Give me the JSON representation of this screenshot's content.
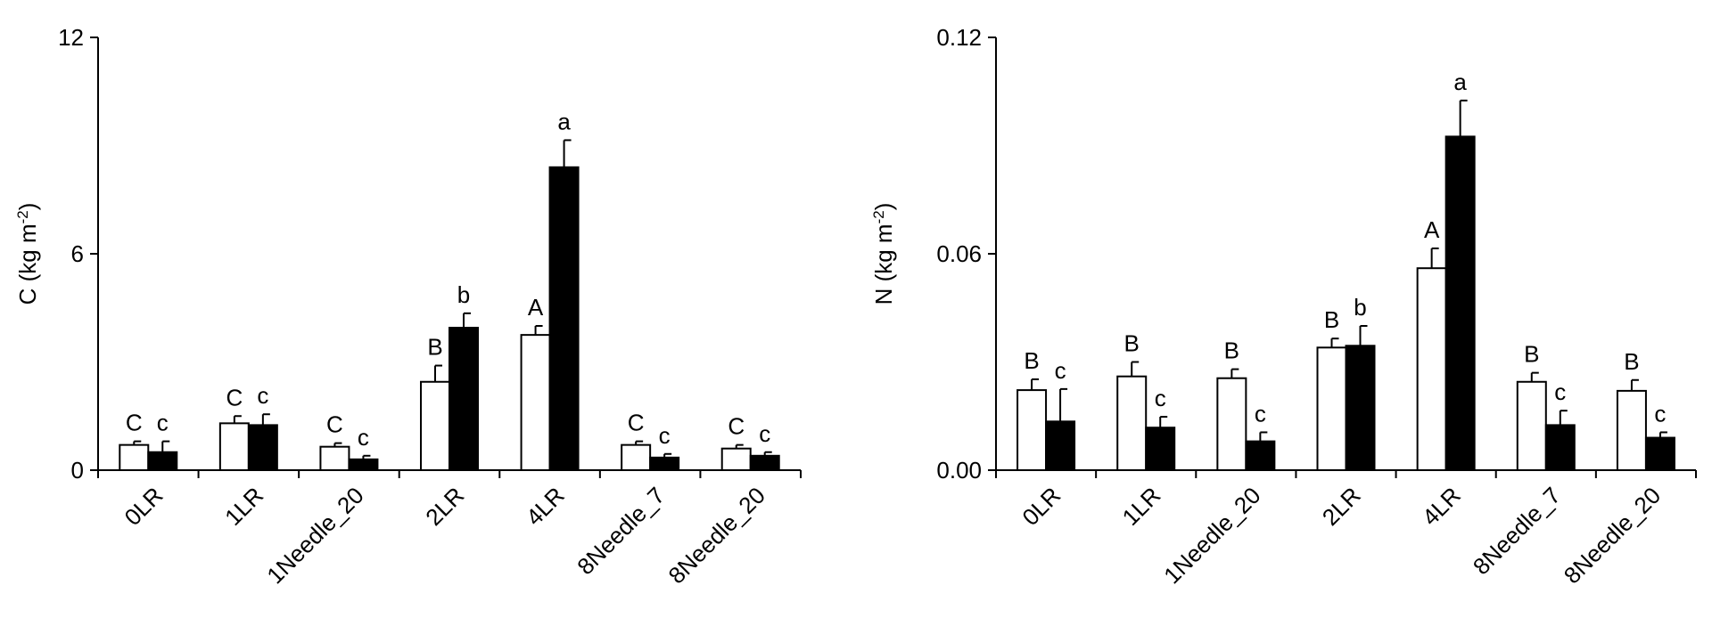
{
  "colors": {
    "series_open": "#ffffff",
    "series_filled": "#000000",
    "axis": "#000000"
  },
  "chart_data": [
    {
      "type": "bar",
      "ylabel_main": "C (kg m",
      "ylabel_sup": "-2",
      "ylabel_close": ")",
      "ylim": [
        0,
        12
      ],
      "yticks": [
        "0",
        "6",
        "12"
      ],
      "ytick_values": [
        0,
        6,
        12
      ],
      "categories": [
        "0LR",
        "1LR",
        "1Needle_20",
        "2LR",
        "4LR",
        "8Needle_7",
        "8Needle_20"
      ],
      "series": [
        {
          "fill": "open",
          "values": [
            0.7,
            1.3,
            0.65,
            2.45,
            3.75,
            0.7,
            0.6
          ],
          "errors": [
            0.1,
            0.2,
            0.1,
            0.45,
            0.25,
            0.1,
            0.1
          ],
          "labels": [
            "C",
            "C",
            "C",
            "B",
            "A",
            "C",
            "C"
          ]
        },
        {
          "fill": "filled",
          "values": [
            0.5,
            1.25,
            0.3,
            3.95,
            8.4,
            0.35,
            0.4
          ],
          "errors": [
            0.3,
            0.3,
            0.1,
            0.4,
            0.75,
            0.1,
            0.1
          ],
          "labels": [
            "c",
            "c",
            "c",
            "b",
            "a",
            "c",
            "c"
          ]
        }
      ]
    },
    {
      "type": "bar",
      "ylabel_main": "N (kg m",
      "ylabel_sup": "-2",
      "ylabel_close": ")",
      "ylim": [
        0,
        0.12
      ],
      "yticks": [
        "0.00",
        "0.06",
        "0.12"
      ],
      "ytick_values": [
        0,
        0.06,
        0.12
      ],
      "categories": [
        "0LR",
        "1LR",
        "1Needle_20",
        "2LR",
        "4LR",
        "8Needle_7",
        "8Needle_20"
      ],
      "series": [
        {
          "fill": "open",
          "values": [
            0.0222,
            0.026,
            0.0255,
            0.034,
            0.056,
            0.0245,
            0.022
          ],
          "errors": [
            0.003,
            0.004,
            0.0025,
            0.0025,
            0.0055,
            0.0025,
            0.003
          ],
          "labels": [
            "B",
            "B",
            "B",
            "B",
            "A",
            "B",
            "B"
          ]
        },
        {
          "fill": "filled",
          "values": [
            0.0135,
            0.0118,
            0.008,
            0.0345,
            0.0925,
            0.0125,
            0.009
          ],
          "errors": [
            0.009,
            0.003,
            0.0025,
            0.0055,
            0.01,
            0.004,
            0.0015
          ],
          "labels": [
            "c",
            "c",
            "c",
            "b",
            "a",
            "c",
            "c"
          ]
        }
      ]
    }
  ]
}
